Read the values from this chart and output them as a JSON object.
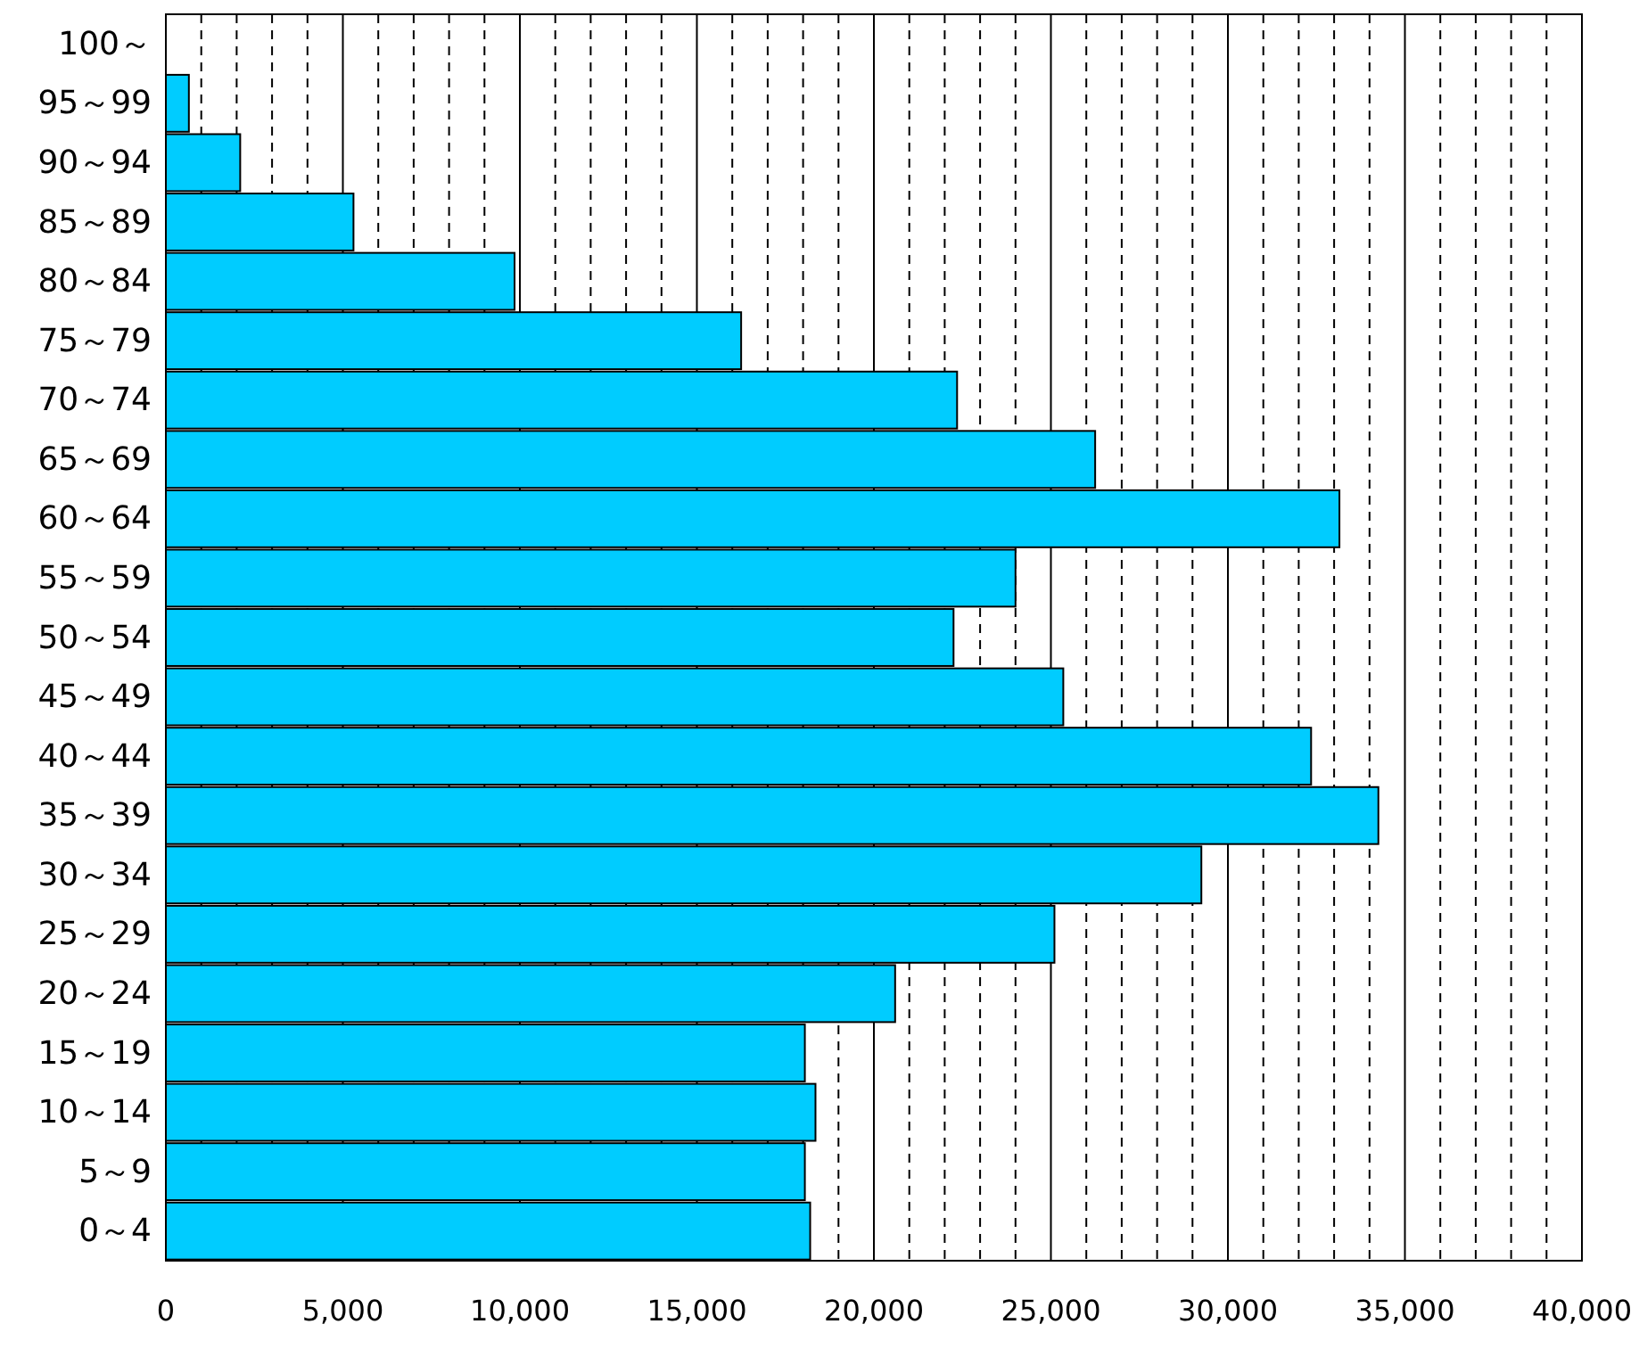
{
  "chart_data": {
    "type": "bar",
    "orientation": "horizontal",
    "categories": [
      "100～",
      "95～99",
      "90～94",
      "85～89",
      "80～84",
      "75～79",
      "70～74",
      "65～69",
      "60～64",
      "55～59",
      "50～54",
      "45～49",
      "40～44",
      "35～39",
      "30～34",
      "25～29",
      "20～24",
      "15～19",
      "10～14",
      "5～9",
      "0～4"
    ],
    "values": [
      0,
      650,
      2100,
      5300,
      9850,
      16250,
      22350,
      26250,
      33150,
      24000,
      22250,
      25350,
      32350,
      34250,
      29250,
      25100,
      20600,
      18050,
      18350,
      18050,
      18200
    ],
    "color": "#00ccff",
    "xlim": [
      0,
      40000
    ],
    "xticks": [
      0,
      {
        "value": 1000,
        "label": null
      },
      {
        "value": 2000,
        "label": null
      },
      {
        "value": 3000,
        "label": null
      },
      {
        "value": 4000,
        "label": null
      },
      {
        "value": 5000,
        "label": "5,000"
      },
      {
        "value": 6000,
        "label": null
      },
      {
        "value": 7000,
        "label": null
      },
      {
        "value": 8000,
        "label": null
      },
      {
        "value": 9000,
        "label": null
      },
      {
        "value": 10000,
        "label": "10,000"
      },
      {
        "value": 11000,
        "label": null
      },
      {
        "value": 12000,
        "label": null
      },
      {
        "value": 13000,
        "label": null
      },
      {
        "value": 14000,
        "label": null
      },
      {
        "value": 15000,
        "label": "15,000"
      },
      {
        "value": 16000,
        "label": null
      },
      {
        "value": 17000,
        "label": null
      },
      {
        "value": 18000,
        "label": null
      },
      {
        "value": 19000,
        "label": null
      },
      {
        "value": 20000,
        "label": "20,000"
      },
      {
        "value": 21000,
        "label": null
      },
      {
        "value": 22000,
        "label": null
      },
      {
        "value": 23000,
        "label": null
      },
      {
        "value": 24000,
        "label": null
      },
      {
        "value": 25000,
        "label": "25,000"
      },
      {
        "value": 26000,
        "label": null
      },
      {
        "value": 27000,
        "label": null
      },
      {
        "value": 28000,
        "label": null
      },
      {
        "value": 29000,
        "label": null
      },
      {
        "value": 30000,
        "label": "30,000"
      },
      {
        "value": 31000,
        "label": null
      },
      {
        "value": 32000,
        "label": null
      },
      {
        "value": 33000,
        "label": null
      },
      {
        "value": 34000,
        "label": null
      },
      {
        "value": 35000,
        "label": "35,000"
      },
      {
        "value": 36000,
        "label": null
      },
      {
        "value": 37000,
        "label": null
      },
      {
        "value": 38000,
        "label": null
      },
      {
        "value": 39000,
        "label": null
      },
      {
        "value": 40000,
        "label": "40,000"
      }
    ],
    "grid": "x"
  }
}
